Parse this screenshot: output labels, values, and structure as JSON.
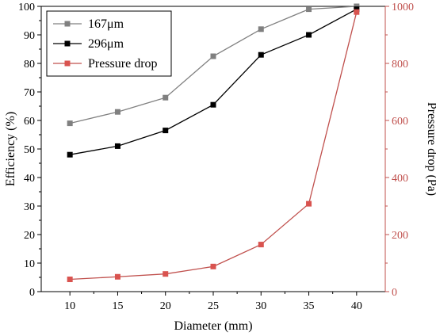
{
  "chart_data": {
    "type": "line",
    "x": [
      10,
      15,
      20,
      25,
      30,
      35,
      40
    ],
    "xlabel": "Diameter (mm)",
    "ylabel": "Efficiency (%)",
    "ylabel_right": "Pressure drop (Pa)",
    "xlim": [
      7,
      43
    ],
    "ylim": [
      0,
      100
    ],
    "ylim_right": [
      0,
      1000
    ],
    "xticks": [
      10,
      15,
      20,
      25,
      30,
      35,
      40
    ],
    "yticks": [
      0,
      10,
      20,
      30,
      40,
      50,
      60,
      70,
      80,
      90,
      100
    ],
    "yticks_right": [
      0,
      200,
      400,
      600,
      800,
      1000
    ],
    "legend_position": "top-left",
    "grid": false,
    "series": [
      {
        "name": "167μm",
        "axis": "left",
        "color": "#808080",
        "values": [
          59,
          63,
          68,
          82.5,
          92,
          99,
          100
        ]
      },
      {
        "name": "296μm",
        "axis": "left",
        "color": "#000000",
        "values": [
          48,
          51,
          56.5,
          65.5,
          83,
          90,
          99
        ]
      },
      {
        "name": "Pressure drop",
        "axis": "right",
        "color": "#c0504d",
        "marker_color": "#d9534f",
        "values": [
          43,
          52,
          62,
          88,
          165,
          308,
          980
        ]
      }
    ]
  },
  "colors": {
    "right_axis": "#c0504d"
  }
}
